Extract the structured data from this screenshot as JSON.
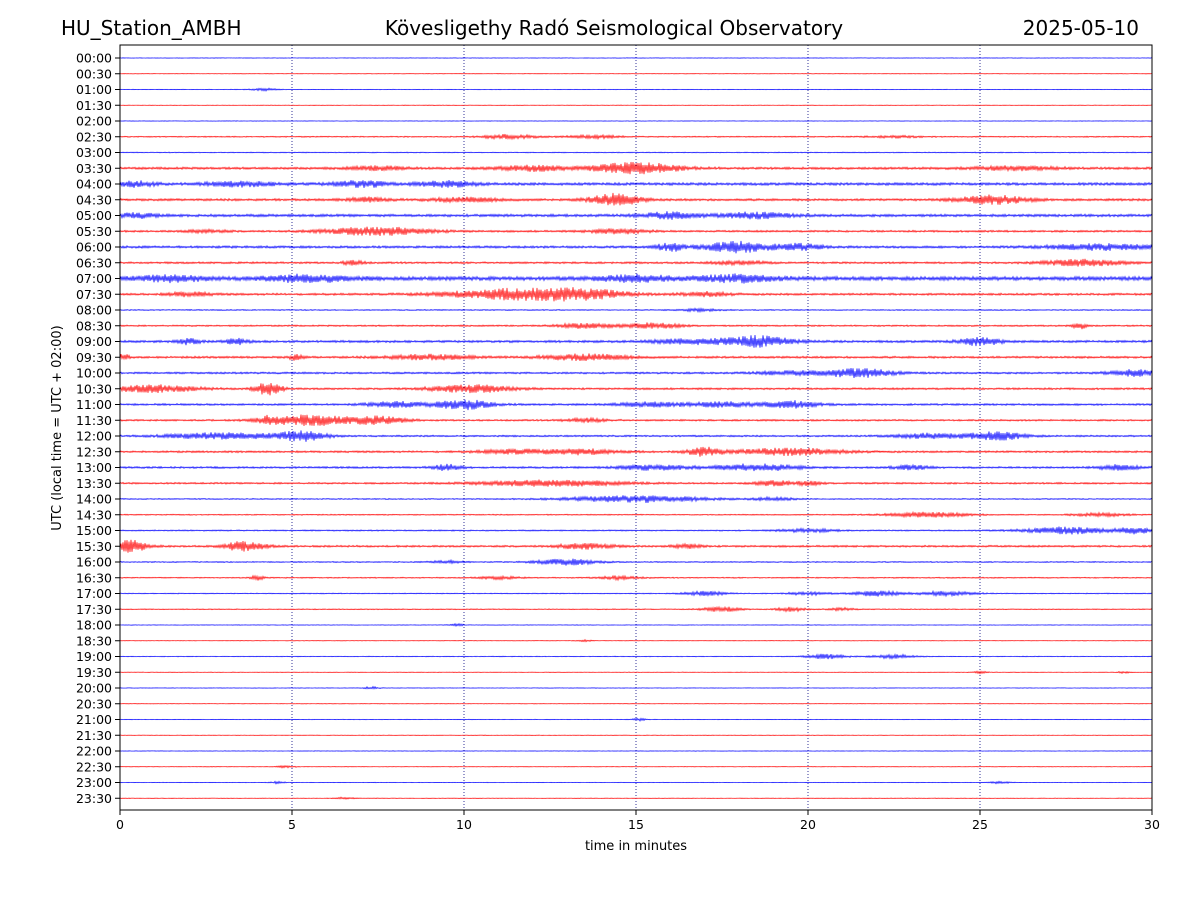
{
  "header": {
    "station": "HU_Station_AMBH",
    "observatory": "Kövesligethy Radó Seismological Observatory",
    "date": "2025-05-10"
  },
  "chart_data": {
    "type": "line",
    "title": "Kövesligethy Radó Seismological Observatory",
    "xlabel": "time in minutes",
    "ylabel": "UTC (local time = UTC + 02:00)",
    "xlim": [
      0,
      30
    ],
    "x_ticks": [
      "0",
      "5",
      "10",
      "15",
      "20",
      "25",
      "30"
    ],
    "grid": "vertical dotted lines at every 5 minutes",
    "row_colors": [
      "#0000ff",
      "#ff0000"
    ],
    "rows": [
      {
        "label": "00:00",
        "noise": 0.3,
        "events": []
      },
      {
        "label": "00:30",
        "noise": 0.3,
        "events": []
      },
      {
        "label": "01:00",
        "noise": 0.3,
        "events": [
          {
            "t": 4.2,
            "w": 0.4,
            "a": 1.2
          }
        ]
      },
      {
        "label": "01:30",
        "noise": 0.3,
        "events": []
      },
      {
        "label": "02:00",
        "noise": 0.3,
        "events": []
      },
      {
        "label": "02:30",
        "noise": 0.6,
        "events": [
          {
            "t": 11.3,
            "w": 0.8,
            "a": 2.2
          },
          {
            "t": 13.8,
            "w": 0.8,
            "a": 1.6
          },
          {
            "t": 22.5,
            "w": 0.8,
            "a": 1.0
          }
        ]
      },
      {
        "label": "03:00",
        "noise": 0.5,
        "events": []
      },
      {
        "label": "03:30",
        "noise": 1.2,
        "events": [
          {
            "t": 15.0,
            "w": 1.2,
            "a": 5.5
          },
          {
            "t": 12.0,
            "w": 1.0,
            "a": 2.5
          },
          {
            "t": 7.5,
            "w": 0.8,
            "a": 1.8
          },
          {
            "t": 26.0,
            "w": 1.2,
            "a": 1.8
          }
        ]
      },
      {
        "label": "04:00",
        "noise": 1.4,
        "events": [
          {
            "t": 7.0,
            "w": 0.8,
            "a": 3.0
          },
          {
            "t": 0.5,
            "w": 0.5,
            "a": 2.6
          },
          {
            "t": 9.5,
            "w": 0.8,
            "a": 2.6
          },
          {
            "t": 3.5,
            "w": 1.0,
            "a": 2.2
          }
        ]
      },
      {
        "label": "04:30",
        "noise": 1.2,
        "events": [
          {
            "t": 14.4,
            "w": 0.7,
            "a": 5.8
          },
          {
            "t": 25.4,
            "w": 1.0,
            "a": 4.2
          },
          {
            "t": 10.0,
            "w": 1.0,
            "a": 2.0
          },
          {
            "t": 7.2,
            "w": 0.6,
            "a": 2.0
          }
        ]
      },
      {
        "label": "05:00",
        "noise": 1.4,
        "events": [
          {
            "t": 16.0,
            "w": 0.8,
            "a": 3.0
          },
          {
            "t": 18.5,
            "w": 0.9,
            "a": 3.0
          },
          {
            "t": 0.5,
            "w": 0.5,
            "a": 2.2
          }
        ]
      },
      {
        "label": "05:30",
        "noise": 1.0,
        "events": [
          {
            "t": 7.5,
            "w": 1.5,
            "a": 4.0
          },
          {
            "t": 14.5,
            "w": 0.8,
            "a": 2.4
          },
          {
            "t": 2.5,
            "w": 0.6,
            "a": 1.4
          }
        ]
      },
      {
        "label": "06:00",
        "noise": 1.2,
        "events": [
          {
            "t": 18.0,
            "w": 1.0,
            "a": 5.2
          },
          {
            "t": 16.0,
            "w": 0.4,
            "a": 4.0
          },
          {
            "t": 19.8,
            "w": 0.6,
            "a": 2.8
          },
          {
            "t": 28.5,
            "w": 1.5,
            "a": 2.8
          }
        ]
      },
      {
        "label": "06:30",
        "noise": 1.0,
        "events": [
          {
            "t": 6.8,
            "w": 0.3,
            "a": 2.4
          },
          {
            "t": 28.0,
            "w": 1.2,
            "a": 3.0
          },
          {
            "t": 18.0,
            "w": 0.8,
            "a": 1.6
          }
        ]
      },
      {
        "label": "07:00",
        "noise": 2.0,
        "events": [
          {
            "t": 5.5,
            "w": 1.2,
            "a": 3.2
          },
          {
            "t": 18.0,
            "w": 1.2,
            "a": 3.2
          },
          {
            "t": 15.0,
            "w": 1.0,
            "a": 2.8
          },
          {
            "t": 1.5,
            "w": 1.0,
            "a": 2.6
          }
        ]
      },
      {
        "label": "07:30",
        "noise": 1.1,
        "events": [
          {
            "t": 11.5,
            "w": 2.0,
            "a": 5.2
          },
          {
            "t": 13.5,
            "w": 1.2,
            "a": 4.0
          },
          {
            "t": 17.0,
            "w": 0.7,
            "a": 2.2
          },
          {
            "t": 2.0,
            "w": 0.6,
            "a": 2.0
          }
        ]
      },
      {
        "label": "08:00",
        "noise": 0.6,
        "events": [
          {
            "t": 16.8,
            "w": 0.6,
            "a": 1.4
          }
        ]
      },
      {
        "label": "08:30",
        "noise": 0.8,
        "events": [
          {
            "t": 13.5,
            "w": 0.8,
            "a": 2.4
          },
          {
            "t": 15.5,
            "w": 0.8,
            "a": 2.6
          },
          {
            "t": 27.9,
            "w": 0.2,
            "a": 3.0
          }
        ]
      },
      {
        "label": "09:00",
        "noise": 1.2,
        "events": [
          {
            "t": 18.5,
            "w": 1.0,
            "a": 5.2
          },
          {
            "t": 2.0,
            "w": 0.3,
            "a": 3.0
          },
          {
            "t": 3.4,
            "w": 0.3,
            "a": 2.6
          },
          {
            "t": 25.0,
            "w": 0.6,
            "a": 3.6
          },
          {
            "t": 16.5,
            "w": 1.0,
            "a": 2.4
          }
        ]
      },
      {
        "label": "09:30",
        "noise": 1.1,
        "events": [
          {
            "t": 13.5,
            "w": 1.2,
            "a": 3.0
          },
          {
            "t": 9.0,
            "w": 1.2,
            "a": 2.4
          },
          {
            "t": 0.1,
            "w": 0.2,
            "a": 2.6
          },
          {
            "t": 5.1,
            "w": 0.2,
            "a": 2.6
          }
        ]
      },
      {
        "label": "10:00",
        "noise": 1.0,
        "events": [
          {
            "t": 21.5,
            "w": 1.0,
            "a": 4.2
          },
          {
            "t": 29.5,
            "w": 0.8,
            "a": 3.0
          },
          {
            "t": 19.5,
            "w": 1.0,
            "a": 1.8
          }
        ]
      },
      {
        "label": "10:30",
        "noise": 1.0,
        "events": [
          {
            "t": 1.0,
            "w": 1.2,
            "a": 3.6
          },
          {
            "t": 4.3,
            "w": 0.4,
            "a": 6.0
          },
          {
            "t": 10.2,
            "w": 1.2,
            "a": 3.6
          }
        ]
      },
      {
        "label": "11:00",
        "noise": 1.0,
        "events": [
          {
            "t": 10.0,
            "w": 0.8,
            "a": 4.8
          },
          {
            "t": 8.0,
            "w": 0.8,
            "a": 2.6
          },
          {
            "t": 19.5,
            "w": 0.8,
            "a": 3.4
          },
          {
            "t": 17.5,
            "w": 0.8,
            "a": 2.6
          },
          {
            "t": 15.5,
            "w": 1.0,
            "a": 2.2
          }
        ]
      },
      {
        "label": "11:30",
        "noise": 0.9,
        "events": [
          {
            "t": 5.5,
            "w": 1.2,
            "a": 5.2
          },
          {
            "t": 7.5,
            "w": 0.8,
            "a": 3.6
          },
          {
            "t": 4.3,
            "w": 0.3,
            "a": 2.6
          },
          {
            "t": 13.5,
            "w": 0.6,
            "a": 1.8
          }
        ]
      },
      {
        "label": "12:00",
        "noise": 0.9,
        "events": [
          {
            "t": 5.3,
            "w": 0.7,
            "a": 4.8
          },
          {
            "t": 3.0,
            "w": 1.6,
            "a": 3.0
          },
          {
            "t": 25.5,
            "w": 0.8,
            "a": 4.2
          },
          {
            "t": 23.5,
            "w": 1.0,
            "a": 2.6
          }
        ]
      },
      {
        "label": "12:30",
        "noise": 1.0,
        "events": [
          {
            "t": 17.0,
            "w": 0.5,
            "a": 4.2
          },
          {
            "t": 19.5,
            "w": 1.5,
            "a": 3.4
          },
          {
            "t": 13.5,
            "w": 1.0,
            "a": 2.6
          },
          {
            "t": 11.5,
            "w": 1.0,
            "a": 2.2
          }
        ]
      },
      {
        "label": "13:00",
        "noise": 1.0,
        "events": [
          {
            "t": 18.5,
            "w": 1.2,
            "a": 3.4
          },
          {
            "t": 9.5,
            "w": 0.4,
            "a": 2.8
          },
          {
            "t": 15.5,
            "w": 1.0,
            "a": 2.4
          },
          {
            "t": 29.0,
            "w": 0.6,
            "a": 2.4
          },
          {
            "t": 23.0,
            "w": 0.5,
            "a": 2.2
          }
        ]
      },
      {
        "label": "13:30",
        "noise": 0.9,
        "events": [
          {
            "t": 12.5,
            "w": 2.0,
            "a": 3.0
          },
          {
            "t": 19.0,
            "w": 0.5,
            "a": 2.6
          },
          {
            "t": 20.0,
            "w": 0.4,
            "a": 1.8
          }
        ]
      },
      {
        "label": "14:00",
        "noise": 0.6,
        "events": [
          {
            "t": 15.0,
            "w": 2.0,
            "a": 3.4
          },
          {
            "t": 19.0,
            "w": 0.6,
            "a": 1.6
          }
        ]
      },
      {
        "label": "14:30",
        "noise": 0.6,
        "events": [
          {
            "t": 23.5,
            "w": 1.2,
            "a": 2.4
          },
          {
            "t": 28.5,
            "w": 0.8,
            "a": 1.8
          }
        ]
      },
      {
        "label": "15:00",
        "noise": 0.7,
        "events": [
          {
            "t": 27.5,
            "w": 1.2,
            "a": 3.4
          },
          {
            "t": 29.5,
            "w": 0.5,
            "a": 3.0
          },
          {
            "t": 20.0,
            "w": 0.8,
            "a": 1.6
          }
        ]
      },
      {
        "label": "15:30",
        "noise": 1.0,
        "events": [
          {
            "t": 0.3,
            "w": 0.5,
            "a": 6.2
          },
          {
            "t": 3.6,
            "w": 0.6,
            "a": 4.6
          },
          {
            "t": 13.5,
            "w": 0.8,
            "a": 2.6
          },
          {
            "t": 16.5,
            "w": 0.4,
            "a": 2.2
          }
        ]
      },
      {
        "label": "16:00",
        "noise": 0.6,
        "events": [
          {
            "t": 13.0,
            "w": 0.9,
            "a": 3.0
          },
          {
            "t": 9.5,
            "w": 0.5,
            "a": 1.4
          }
        ]
      },
      {
        "label": "16:30",
        "noise": 0.6,
        "events": [
          {
            "t": 4.0,
            "w": 0.2,
            "a": 2.2
          },
          {
            "t": 14.5,
            "w": 0.6,
            "a": 1.8
          },
          {
            "t": 11.0,
            "w": 0.6,
            "a": 1.4
          }
        ]
      },
      {
        "label": "17:00",
        "noise": 0.5,
        "events": [
          {
            "t": 17.0,
            "w": 0.6,
            "a": 2.2
          },
          {
            "t": 22.0,
            "w": 0.7,
            "a": 2.6
          },
          {
            "t": 24.0,
            "w": 0.8,
            "a": 2.2
          },
          {
            "t": 20.0,
            "w": 0.6,
            "a": 1.6
          }
        ]
      },
      {
        "label": "17:30",
        "noise": 0.5,
        "events": [
          {
            "t": 17.5,
            "w": 0.6,
            "a": 2.4
          },
          {
            "t": 19.5,
            "w": 0.4,
            "a": 2.2
          },
          {
            "t": 21.0,
            "w": 0.4,
            "a": 1.4
          }
        ]
      },
      {
        "label": "18:00",
        "noise": 0.3,
        "events": [
          {
            "t": 9.8,
            "w": 0.2,
            "a": 1.2
          }
        ]
      },
      {
        "label": "18:30",
        "noise": 0.3,
        "events": [
          {
            "t": 13.5,
            "w": 0.2,
            "a": 1.0
          }
        ]
      },
      {
        "label": "19:00",
        "noise": 0.4,
        "events": [
          {
            "t": 20.5,
            "w": 0.6,
            "a": 2.4
          },
          {
            "t": 22.5,
            "w": 0.6,
            "a": 2.0
          }
        ]
      },
      {
        "label": "19:30",
        "noise": 0.3,
        "events": [
          {
            "t": 25.0,
            "w": 0.2,
            "a": 1.2
          },
          {
            "t": 29.2,
            "w": 0.2,
            "a": 1.0
          }
        ]
      },
      {
        "label": "20:00",
        "noise": 0.3,
        "events": [
          {
            "t": 7.3,
            "w": 0.2,
            "a": 1.4
          }
        ]
      },
      {
        "label": "20:30",
        "noise": 0.3,
        "events": []
      },
      {
        "label": "21:00",
        "noise": 0.3,
        "events": [
          {
            "t": 15.1,
            "w": 0.2,
            "a": 1.2
          }
        ]
      },
      {
        "label": "21:30",
        "noise": 0.3,
        "events": []
      },
      {
        "label": "22:00",
        "noise": 0.3,
        "events": []
      },
      {
        "label": "22:30",
        "noise": 0.3,
        "events": [
          {
            "t": 4.8,
            "w": 0.3,
            "a": 1.0
          }
        ]
      },
      {
        "label": "23:00",
        "noise": 0.3,
        "events": [
          {
            "t": 4.6,
            "w": 0.2,
            "a": 1.2
          },
          {
            "t": 25.6,
            "w": 0.3,
            "a": 1.2
          }
        ]
      },
      {
        "label": "23:30",
        "noise": 0.3,
        "events": [
          {
            "t": 6.5,
            "w": 0.3,
            "a": 1.0
          }
        ]
      }
    ]
  }
}
